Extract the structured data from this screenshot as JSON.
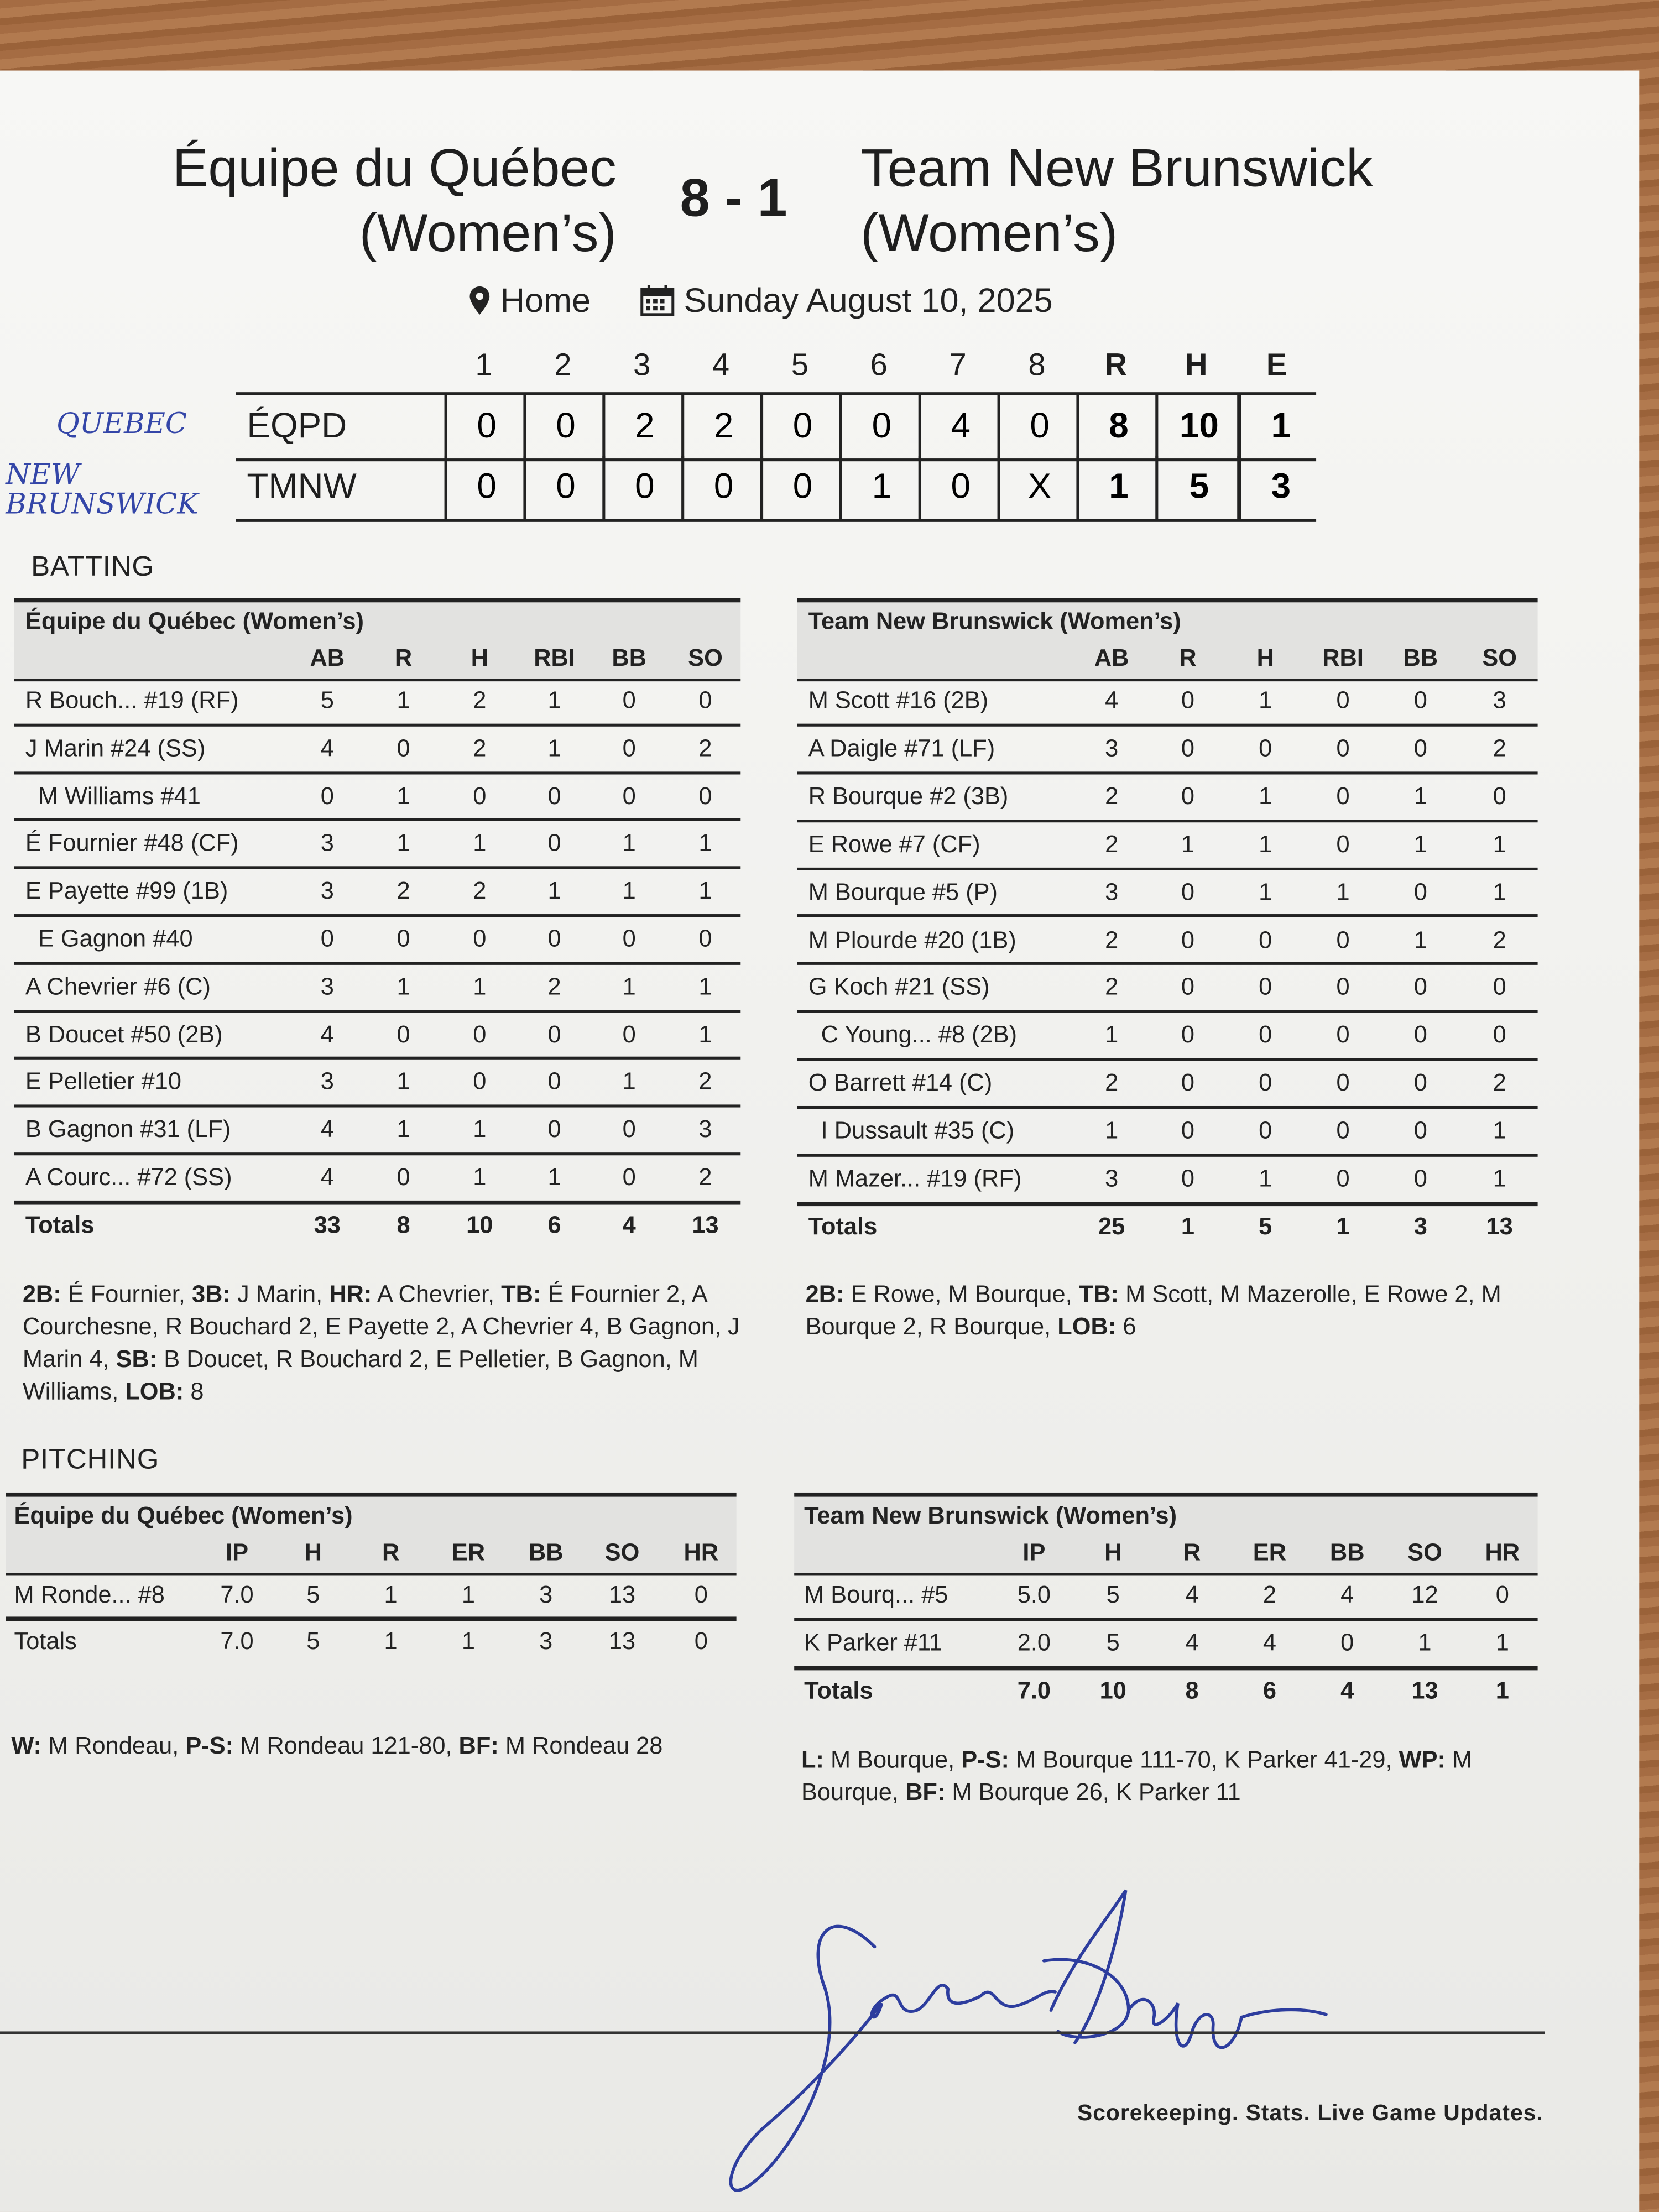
{
  "header": {
    "home_team": [
      "Équipe du Québec",
      "(Women’s)"
    ],
    "score": "8 - 1",
    "away_team": [
      "Team New Brunswick",
      "(Women’s)"
    ],
    "location_icon": "map-pin-icon",
    "location": "Home",
    "date_icon": "calendar-icon",
    "date": "Sunday August 10, 2025"
  },
  "linescore": {
    "columns": [
      "1",
      "2",
      "3",
      "4",
      "5",
      "6",
      "7",
      "8",
      "R",
      "H",
      "E"
    ],
    "rows": [
      {
        "team": "ÉQPD",
        "values": [
          "0",
          "0",
          "2",
          "2",
          "0",
          "0",
          "4",
          "0",
          "8",
          "10",
          "1"
        ],
        "handwritten": "QUEBEC"
      },
      {
        "team": "TMNW",
        "values": [
          "0",
          "0",
          "0",
          "0",
          "0",
          "1",
          "0",
          "X",
          "1",
          "5",
          "3"
        ],
        "handwritten": "NEW BRUNSWICK"
      }
    ]
  },
  "batting": {
    "title": "BATTING",
    "teams": [
      {
        "header": [
          "Équipe du Québec (Women’s)",
          "AB",
          "R",
          "H",
          "RBI",
          "BB",
          "SO"
        ],
        "rows": [
          [
            "R Bouch... #19 (RF)",
            "5",
            "1",
            "2",
            "1",
            "0",
            "0"
          ],
          [
            "J Marin #24 (SS)",
            "4",
            "0",
            "2",
            "1",
            "0",
            "2"
          ],
          [
            "M Williams #41",
            "0",
            "1",
            "0",
            "0",
            "0",
            "0"
          ],
          [
            "É Fournier #48 (CF)",
            "3",
            "1",
            "1",
            "0",
            "1",
            "1"
          ],
          [
            "E Payette #99 (1B)",
            "3",
            "2",
            "2",
            "1",
            "1",
            "1"
          ],
          [
            "E Gagnon #40",
            "0",
            "0",
            "0",
            "0",
            "0",
            "0"
          ],
          [
            "A Chevrier #6 (C)",
            "3",
            "1",
            "1",
            "2",
            "1",
            "1"
          ],
          [
            "B Doucet #50 (2B)",
            "4",
            "0",
            "0",
            "0",
            "0",
            "1"
          ],
          [
            "E Pelletier #10",
            "3",
            "1",
            "0",
            "0",
            "1",
            "2"
          ],
          [
            "B Gagnon #31 (LF)",
            "4",
            "1",
            "1",
            "0",
            "0",
            "3"
          ],
          [
            "A Courc... #72 (SS)",
            "4",
            "0",
            "1",
            "1",
            "0",
            "2"
          ]
        ],
        "indented": [
          2,
          5
        ],
        "totals": [
          "Totals",
          "33",
          "8",
          "10",
          "6",
          "4",
          "13"
        ],
        "notes": [
          [
            "2B:",
            " É Fournier, "
          ],
          [
            "3B:",
            " J Marin, "
          ],
          [
            "HR:",
            " A Chevrier, "
          ],
          [
            "TB:",
            " É Fournier 2, A Courchesne, R Bouchard 2, E Payette 2, A Chevrier 4, B Gagnon, J Marin 4, "
          ],
          [
            "SB:",
            " B Doucet, R Bouchard 2, E Pelletier, B Gagnon, M Williams, "
          ],
          [
            "LOB:",
            " 8"
          ]
        ]
      },
      {
        "header": [
          "Team New Brunswick (Women’s)",
          "AB",
          "R",
          "H",
          "RBI",
          "BB",
          "SO"
        ],
        "rows": [
          [
            "M Scott #16 (2B)",
            "4",
            "0",
            "1",
            "0",
            "0",
            "3"
          ],
          [
            "A Daigle #71 (LF)",
            "3",
            "0",
            "0",
            "0",
            "0",
            "2"
          ],
          [
            "R Bourque #2 (3B)",
            "2",
            "0",
            "1",
            "0",
            "1",
            "0"
          ],
          [
            "E Rowe #7 (CF)",
            "2",
            "1",
            "1",
            "0",
            "1",
            "1"
          ],
          [
            "M Bourque #5 (P)",
            "3",
            "0",
            "1",
            "1",
            "0",
            "1"
          ],
          [
            "M Plourde #20 (1B)",
            "2",
            "0",
            "0",
            "0",
            "1",
            "2"
          ],
          [
            "G Koch #21 (SS)",
            "2",
            "0",
            "0",
            "0",
            "0",
            "0"
          ],
          [
            "C Young... #8 (2B)",
            "1",
            "0",
            "0",
            "0",
            "0",
            "0"
          ],
          [
            "O Barrett #14 (C)",
            "2",
            "0",
            "0",
            "0",
            "0",
            "2"
          ],
          [
            "I Dussault #35 (C)",
            "1",
            "0",
            "0",
            "0",
            "0",
            "1"
          ],
          [
            "M Mazer... #19 (RF)",
            "3",
            "0",
            "1",
            "0",
            "0",
            "1"
          ]
        ],
        "indented": [
          7,
          9
        ],
        "totals": [
          "Totals",
          "25",
          "1",
          "5",
          "1",
          "3",
          "13"
        ],
        "notes": [
          [
            "2B:",
            " E Rowe, M Bourque, "
          ],
          [
            "TB:",
            " M Scott, M Mazerolle, E Rowe 2, M Bourque 2, R Bourque, "
          ],
          [
            "LOB:",
            " 6"
          ]
        ]
      }
    ]
  },
  "pitching": {
    "title": "PITCHING",
    "teams": [
      {
        "header": [
          "Équipe du Québec (Women’s)",
          "IP",
          "H",
          "R",
          "ER",
          "BB",
          "SO",
          "HR"
        ],
        "rows": [
          [
            "M Ronde... #8",
            "7.0",
            "5",
            "1",
            "1",
            "3",
            "13",
            "0"
          ]
        ],
        "totals": [
          "Totals",
          "7.0",
          "5",
          "1",
          "1",
          "3",
          "13",
          "0"
        ],
        "totals_bold": false,
        "notes": [
          [
            "W:",
            " M Rondeau, "
          ],
          [
            "P-S:",
            " M Rondeau 121-80, "
          ],
          [
            "BF:",
            " M Rondeau 28"
          ]
        ]
      },
      {
        "header": [
          "Team New Brunswick (Women’s)",
          "IP",
          "H",
          "R",
          "ER",
          "BB",
          "SO",
          "HR"
        ],
        "rows": [
          [
            "M Bourq... #5",
            "5.0",
            "5",
            "4",
            "2",
            "4",
            "12",
            "0"
          ],
          [
            "K Parker #11",
            "2.0",
            "5",
            "4",
            "4",
            "0",
            "1",
            "1"
          ]
        ],
        "totals": [
          "Totals",
          "7.0",
          "10",
          "8",
          "6",
          "4",
          "13",
          "1"
        ],
        "totals_bold": true,
        "notes": [
          [
            "L:",
            " M Bourque, "
          ],
          [
            "P-S:",
            " M Bourque 111-70, K Parker 41-29, "
          ],
          [
            "WP:",
            " M Bourque, "
          ],
          [
            "BF:",
            " M Bourque 26, K Parker 11"
          ]
        ]
      }
    ]
  },
  "footer": {
    "tagline": "Scorekeeping. Stats. Live Game Updates.",
    "signature": "Jackie Daggs"
  },
  "colors": {
    "ink": "#1e1e1e",
    "header_bg": "#e2e2e0",
    "handwriting": "#3446a8",
    "wood": "#a56c43"
  }
}
